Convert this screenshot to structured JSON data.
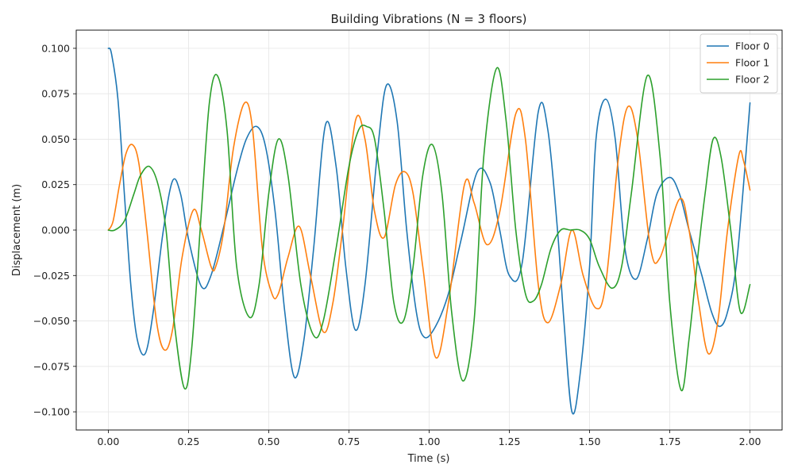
{
  "chart_data": {
    "type": "line",
    "title": "Building Vibrations (N = 3 floors)",
    "xlabel": "Time (s)",
    "ylabel": "Displacement (m)",
    "xlim": [
      -0.1,
      2.1
    ],
    "ylim": [
      -0.11,
      0.11
    ],
    "xticks": [
      0.0,
      0.25,
      0.5,
      0.75,
      1.0,
      1.25,
      1.5,
      1.75,
      2.0
    ],
    "xtick_labels": [
      "0.00",
      "0.25",
      "0.50",
      "0.75",
      "1.00",
      "1.25",
      "1.50",
      "1.75",
      "2.00"
    ],
    "yticks": [
      -0.1,
      -0.075,
      -0.05,
      -0.025,
      0.0,
      0.025,
      0.05,
      0.075,
      0.1
    ],
    "ytick_labels": [
      "−0.100",
      "−0.075",
      "−0.050",
      "−0.025",
      "0.000",
      "0.025",
      "0.050",
      "0.075",
      "0.100"
    ],
    "grid": true,
    "legend_position": "top-right",
    "series": [
      {
        "name": "Floor 0",
        "color": "#1f77b4",
        "x": [
          0.0,
          0.01,
          0.03,
          0.05,
          0.07,
          0.09,
          0.115,
          0.14,
          0.17,
          0.2,
          0.225,
          0.25,
          0.29,
          0.32,
          0.36,
          0.4,
          0.43,
          0.462,
          0.49,
          0.52,
          0.55,
          0.58,
          0.61,
          0.64,
          0.677,
          0.71,
          0.74,
          0.77,
          0.8,
          0.84,
          0.868,
          0.9,
          0.93,
          0.96,
          0.985,
          1.02,
          1.06,
          1.1,
          1.15,
          1.19,
          1.22,
          1.25,
          1.29,
          1.34,
          1.37,
          1.4,
          1.42,
          1.445,
          1.47,
          1.5,
          1.52,
          1.55,
          1.58,
          1.61,
          1.645,
          1.68,
          1.71,
          1.75,
          1.78,
          1.81,
          1.85,
          1.88,
          1.905,
          1.93,
          1.96,
          2.0
        ],
        "values": [
          0.1,
          0.097,
          0.072,
          0.02,
          -0.03,
          -0.06,
          -0.068,
          -0.045,
          -0.002,
          0.027,
          0.02,
          -0.005,
          -0.031,
          -0.025,
          0.002,
          0.032,
          0.05,
          0.057,
          0.046,
          0.01,
          -0.045,
          -0.081,
          -0.06,
          -0.01,
          0.058,
          0.035,
          -0.02,
          -0.055,
          -0.03,
          0.045,
          0.08,
          0.06,
          0.0,
          -0.045,
          -0.059,
          -0.053,
          -0.035,
          -0.005,
          0.032,
          0.026,
          0.0,
          -0.025,
          -0.018,
          0.065,
          0.055,
          0.0,
          -0.05,
          -0.1,
          -0.08,
          -0.02,
          0.05,
          0.072,
          0.05,
          -0.01,
          -0.027,
          -0.005,
          0.02,
          0.029,
          0.02,
          0.0,
          -0.025,
          -0.045,
          -0.053,
          -0.045,
          -0.015,
          0.07
        ]
      },
      {
        "name": "Floor 1",
        "color": "#ff7f0e",
        "x": [
          0.0,
          0.015,
          0.035,
          0.055,
          0.075,
          0.095,
          0.12,
          0.15,
          0.175,
          0.2,
          0.23,
          0.265,
          0.29,
          0.32,
          0.335,
          0.36,
          0.39,
          0.425,
          0.45,
          0.48,
          0.51,
          0.53,
          0.56,
          0.595,
          0.63,
          0.67,
          0.7,
          0.73,
          0.77,
          0.8,
          0.83,
          0.86,
          0.895,
          0.925,
          0.95,
          0.98,
          1.02,
          1.06,
          1.11,
          1.14,
          1.18,
          1.22,
          1.27,
          1.3,
          1.34,
          1.37,
          1.41,
          1.445,
          1.48,
          1.52,
          1.55,
          1.59,
          1.62,
          1.65,
          1.69,
          1.72,
          1.78,
          1.81,
          1.84,
          1.87,
          1.9,
          1.93,
          1.965,
          1.98,
          2.0
        ],
        "values": [
          0.0,
          0.005,
          0.025,
          0.042,
          0.047,
          0.037,
          0.0,
          -0.05,
          -0.066,
          -0.055,
          -0.015,
          0.011,
          0.0,
          -0.02,
          -0.02,
          0.0,
          0.045,
          0.07,
          0.055,
          -0.01,
          -0.035,
          -0.035,
          -0.015,
          0.002,
          -0.025,
          -0.056,
          -0.04,
          0.0,
          0.06,
          0.05,
          0.01,
          -0.004,
          0.025,
          0.032,
          0.02,
          -0.02,
          -0.07,
          -0.04,
          0.025,
          0.015,
          -0.008,
          0.01,
          0.064,
          0.05,
          -0.03,
          -0.051,
          -0.03,
          0.0,
          -0.025,
          -0.043,
          -0.03,
          0.04,
          0.068,
          0.05,
          -0.01,
          -0.015,
          0.017,
          0.0,
          -0.04,
          -0.068,
          -0.05,
          0.0,
          0.041,
          0.038,
          0.022
        ]
      },
      {
        "name": "Floor 2",
        "color": "#2ca02c",
        "x": [
          0.0,
          0.02,
          0.05,
          0.08,
          0.1,
          0.128,
          0.155,
          0.18,
          0.205,
          0.237,
          0.26,
          0.29,
          0.315,
          0.34,
          0.37,
          0.4,
          0.44,
          0.47,
          0.5,
          0.53,
          0.56,
          0.6,
          0.64,
          0.67,
          0.71,
          0.75,
          0.78,
          0.805,
          0.83,
          0.86,
          0.89,
          0.92,
          0.95,
          0.98,
          1.01,
          1.04,
          1.07,
          1.105,
          1.14,
          1.17,
          1.21,
          1.24,
          1.27,
          1.3,
          1.325,
          1.35,
          1.38,
          1.41,
          1.44,
          1.47,
          1.5,
          1.53,
          1.57,
          1.6,
          1.63,
          1.68,
          1.72,
          1.75,
          1.785,
          1.81,
          1.84,
          1.86,
          1.885,
          1.91,
          1.94,
          1.97,
          2.0
        ],
        "values": [
          0.0,
          0.0,
          0.005,
          0.02,
          0.03,
          0.035,
          0.025,
          0.0,
          -0.05,
          -0.087,
          -0.065,
          0.01,
          0.07,
          0.085,
          0.055,
          -0.02,
          -0.048,
          -0.03,
          0.02,
          0.05,
          0.03,
          -0.03,
          -0.058,
          -0.05,
          -0.01,
          0.035,
          0.055,
          0.057,
          0.05,
          0.01,
          -0.04,
          -0.05,
          -0.02,
          0.03,
          0.047,
          0.02,
          -0.045,
          -0.083,
          -0.05,
          0.04,
          0.089,
          0.06,
          0.0,
          -0.035,
          -0.039,
          -0.03,
          -0.01,
          0.0,
          0.0,
          0.0,
          -0.005,
          -0.02,
          -0.032,
          -0.02,
          0.02,
          0.085,
          0.04,
          -0.04,
          -0.088,
          -0.06,
          -0.01,
          0.02,
          0.05,
          0.04,
          0.0,
          -0.045,
          -0.03
        ]
      }
    ]
  }
}
